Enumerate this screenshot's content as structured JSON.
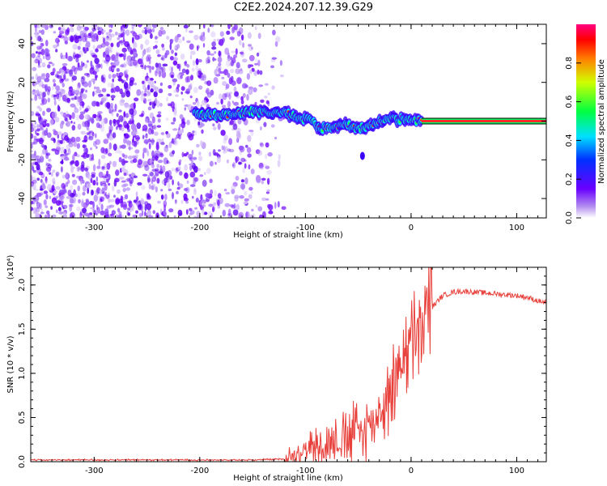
{
  "title": "C2E2.2024.207.12.39.G29",
  "chart_data": [
    {
      "type": "heatmap",
      "xlabel": "Height of straight line (km)",
      "ylabel": "Frequency (Hz)",
      "xlim": [
        -360,
        128
      ],
      "ylim": [
        -50,
        50
      ],
      "x_ticks": [
        -300,
        -200,
        -100,
        0,
        100
      ],
      "y_ticks": [
        -40,
        -20,
        0,
        20,
        40
      ],
      "colorbar": {
        "label": "Normalized spectral amplitude",
        "range": [
          0,
          1
        ],
        "ticks": [
          "0.0",
          "0.2",
          "0.4",
          "0.6",
          "0.8"
        ]
      },
      "noise_region_x": [
        -360,
        -120
      ],
      "signal_track": {
        "x": [
          -205,
          -180,
          -150,
          -130,
          -110,
          -95,
          -85,
          -75,
          -60,
          -50,
          -40,
          -30,
          -20,
          -10,
          0,
          10,
          128
        ],
        "freq": [
          4,
          3,
          5,
          5,
          3,
          0,
          -4,
          -3,
          -2,
          -4,
          -2,
          0,
          1,
          1,
          1,
          0,
          0
        ]
      }
    },
    {
      "type": "line",
      "xlabel": "Height of straight line (km)",
      "ylabel": "SNR (10 * v/v)",
      "yscale_label": "(x10⁴)",
      "xlim": [
        -360,
        128
      ],
      "ylim": [
        0,
        2.2
      ],
      "x_ticks": [
        -300,
        -200,
        -100,
        0,
        100
      ],
      "y_ticks": [
        "0.0",
        "0.5",
        "1.0",
        "1.5",
        "2.0"
      ],
      "series": [
        {
          "color": "#e8403b",
          "x": [
            -360,
            -300,
            -250,
            -200,
            -150,
            -120,
            -110,
            -100,
            -90,
            -80,
            -70,
            -60,
            -50,
            -40,
            -30,
            -20,
            -10,
            0,
            10,
            20,
            30,
            40,
            50,
            60,
            70,
            80,
            90,
            100,
            110,
            120,
            128
          ],
          "y": [
            0.02,
            0.02,
            0.02,
            0.02,
            0.02,
            0.03,
            0.08,
            0.15,
            0.18,
            0.2,
            0.22,
            0.28,
            0.35,
            0.42,
            0.55,
            0.8,
            1.1,
            1.35,
            1.55,
            1.75,
            1.88,
            1.92,
            1.93,
            1.92,
            1.91,
            1.9,
            1.89,
            1.88,
            1.86,
            1.82,
            1.8
          ]
        }
      ]
    }
  ]
}
